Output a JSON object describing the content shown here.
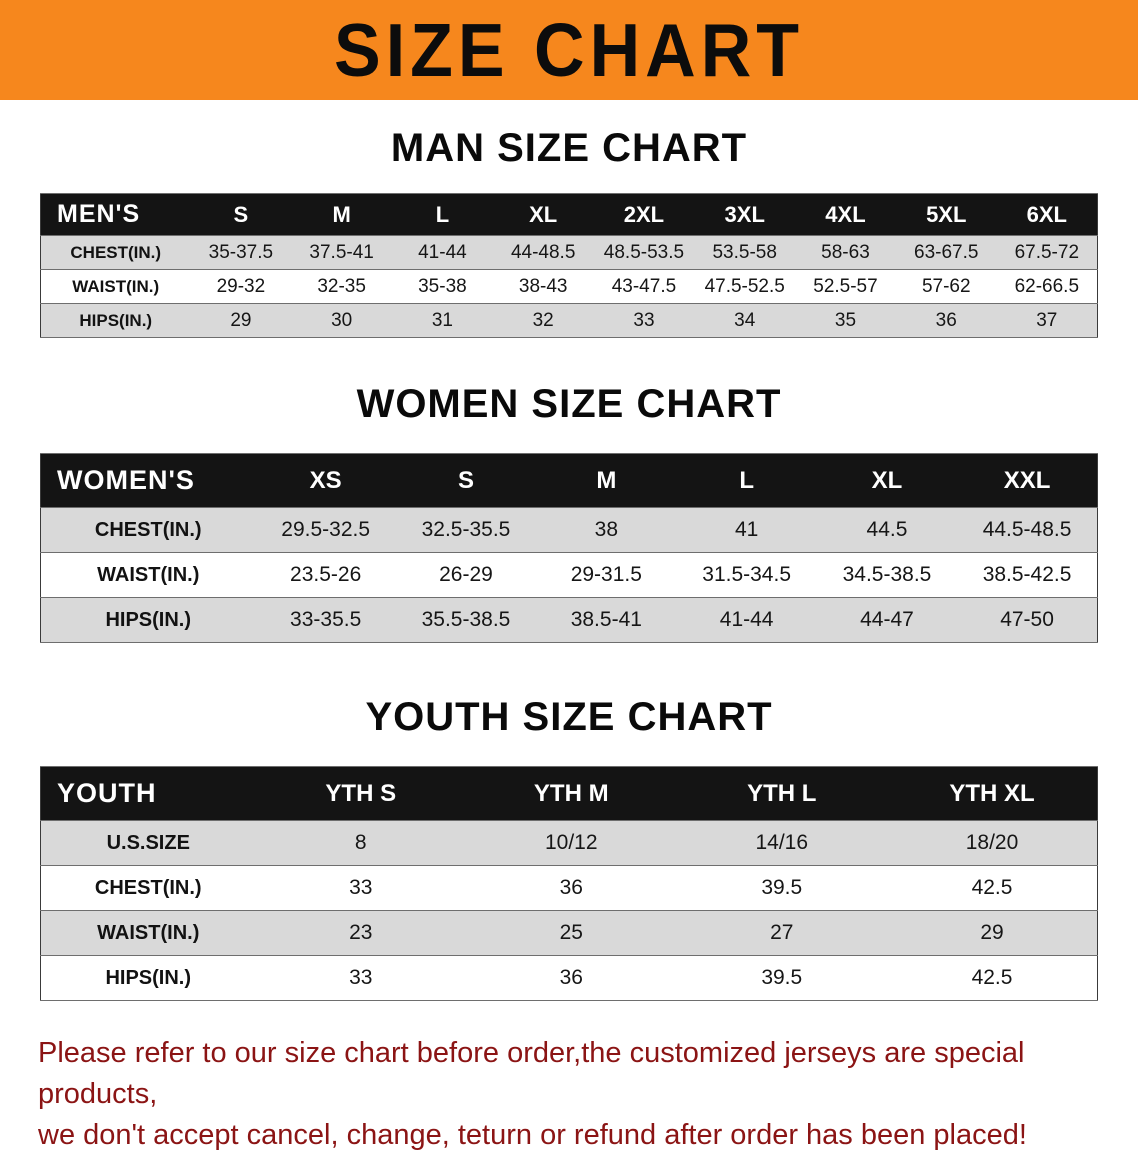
{
  "banner": {
    "title": "SIZE CHART"
  },
  "sections": {
    "men": {
      "heading": "MAN SIZE CHART",
      "table": {
        "header": [
          "MEN'S",
          "S",
          "M",
          "L",
          "XL",
          "2XL",
          "3XL",
          "4XL",
          "5XL",
          "6XL"
        ],
        "rows": [
          [
            "CHEST(IN.)",
            "35-37.5",
            "37.5-41",
            "41-44",
            "44-48.5",
            "48.5-53.5",
            "53.5-58",
            "58-63",
            "63-67.5",
            "67.5-72"
          ],
          [
            "WAIST(IN.)",
            "29-32",
            "32-35",
            "35-38",
            "38-43",
            "43-47.5",
            "47.5-52.5",
            "52.5-57",
            "57-62",
            "62-66.5"
          ],
          [
            "HIPS(IN.)",
            "29",
            "30",
            "31",
            "32",
            "33",
            "34",
            "35",
            "36",
            "37"
          ]
        ]
      }
    },
    "women": {
      "heading": "WOMEN SIZE CHART",
      "table": {
        "header": [
          "WOMEN'S",
          "XS",
          "S",
          "M",
          "L",
          "XL",
          "XXL"
        ],
        "rows": [
          [
            "CHEST(IN.)",
            "29.5-32.5",
            "32.5-35.5",
            "38",
            "41",
            "44.5",
            "44.5-48.5"
          ],
          [
            "WAIST(IN.)",
            "23.5-26",
            "26-29",
            "29-31.5",
            "31.5-34.5",
            "34.5-38.5",
            "38.5-42.5"
          ],
          [
            "HIPS(IN.)",
            "33-35.5",
            "35.5-38.5",
            "38.5-41",
            "41-44",
            "44-47",
            "47-50"
          ]
        ]
      }
    },
    "youth": {
      "heading": "YOUTH SIZE CHART",
      "table": {
        "header": [
          "YOUTH",
          "YTH S",
          "YTH M",
          "YTH L",
          "YTH XL"
        ],
        "rows": [
          [
            "U.S.SIZE",
            "8",
            "10/12",
            "14/16",
            "18/20"
          ],
          [
            "CHEST(IN.)",
            "33",
            "36",
            "39.5",
            "42.5"
          ],
          [
            "WAIST(IN.)",
            "23",
            "25",
            "27",
            "29"
          ],
          [
            "HIPS(IN.)",
            "33",
            "36",
            "39.5",
            "42.5"
          ]
        ]
      }
    }
  },
  "disclaimer": {
    "line1": "Please refer to our size chart before order,the customized jerseys are special products,",
    "line2": "we don't accept cancel, change, teturn or refund after order has been placed!"
  },
  "colors": {
    "banner_bg": "#F6871D",
    "table_header_bg": "#141414",
    "table_header_text": "#FFFFFF",
    "row_alt_bg": "#D9D9D9",
    "row_bg": "#FFFFFF",
    "disclaimer_text": "#8B1414"
  }
}
